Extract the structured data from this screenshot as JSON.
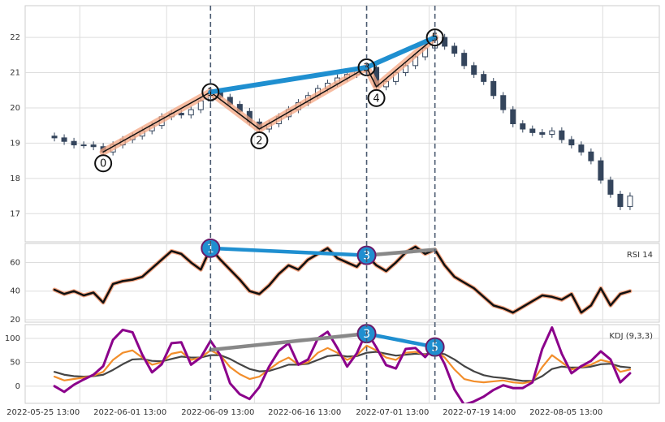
{
  "chart_data": [
    {
      "type": "candlestick",
      "xlim": [
        -3,
        62
      ],
      "ylim": [
        16.2,
        22.9
      ],
      "yticks": [
        17,
        18,
        19,
        20,
        21,
        22
      ],
      "up_color": "#ffffff",
      "down_color": "#34455c",
      "grid": true,
      "open": [
        19.2,
        19.15,
        19.05,
        18.95,
        18.95,
        18.9,
        18.75,
        18.95,
        19.1,
        19.2,
        19.35,
        19.5,
        19.75,
        19.85,
        19.8,
        19.95,
        20.2,
        20.45,
        20.3,
        20.1,
        19.9,
        19.6,
        19.4,
        19.55,
        19.75,
        19.95,
        20.15,
        20.35,
        20.55,
        20.7,
        20.85,
        20.95,
        21.05,
        21.15,
        20.6,
        20.75,
        21.0,
        21.2,
        21.45,
        21.7,
        22.0,
        21.75,
        21.55,
        21.2,
        20.95,
        20.75,
        20.35,
        19.95,
        19.55,
        19.4,
        19.3,
        19.25,
        19.35,
        19.1,
        18.95,
        18.75,
        18.5,
        17.95,
        17.55,
        17.2
      ],
      "high": [
        19.3,
        19.25,
        19.15,
        19.05,
        19.05,
        19.0,
        19.05,
        19.2,
        19.3,
        19.45,
        19.6,
        19.85,
        19.95,
        19.95,
        20.05,
        20.3,
        20.55,
        20.55,
        20.4,
        20.2,
        20.0,
        19.7,
        19.65,
        19.85,
        20.05,
        20.25,
        20.45,
        20.65,
        20.8,
        20.95,
        21.05,
        21.15,
        21.25,
        21.25,
        20.85,
        21.1,
        21.3,
        21.55,
        21.8,
        22.1,
        22.1,
        21.85,
        21.65,
        21.3,
        21.05,
        20.85,
        20.45,
        20.05,
        19.65,
        19.5,
        19.4,
        19.45,
        19.45,
        19.2,
        19.05,
        18.85,
        18.6,
        18.05,
        17.65,
        17.6
      ],
      "low": [
        19.05,
        18.95,
        18.85,
        18.85,
        18.8,
        18.65,
        18.65,
        18.85,
        19.0,
        19.1,
        19.25,
        19.4,
        19.65,
        19.7,
        19.7,
        19.85,
        20.1,
        20.2,
        20.0,
        19.8,
        19.5,
        19.3,
        19.3,
        19.45,
        19.65,
        19.85,
        20.05,
        20.25,
        20.45,
        20.6,
        20.75,
        20.85,
        20.95,
        20.5,
        20.5,
        20.65,
        20.9,
        21.1,
        21.35,
        21.6,
        21.65,
        21.45,
        21.1,
        20.85,
        20.65,
        20.25,
        19.85,
        19.45,
        19.3,
        19.2,
        19.15,
        19.15,
        19.0,
        18.85,
        18.65,
        18.4,
        17.85,
        17.45,
        17.1,
        17.1
      ],
      "close": [
        19.15,
        19.05,
        18.95,
        18.95,
        18.9,
        18.75,
        18.95,
        19.1,
        19.2,
        19.35,
        19.5,
        19.75,
        19.85,
        19.8,
        19.95,
        20.2,
        20.45,
        20.3,
        20.1,
        19.9,
        19.6,
        19.4,
        19.55,
        19.75,
        19.95,
        20.15,
        20.35,
        20.55,
        20.7,
        20.85,
        20.95,
        21.05,
        21.15,
        20.6,
        20.75,
        21.0,
        21.2,
        21.45,
        21.7,
        22.0,
        21.75,
        21.55,
        21.2,
        20.95,
        20.75,
        20.35,
        19.95,
        19.55,
        19.4,
        19.3,
        19.25,
        19.35,
        19.1,
        18.95,
        18.75,
        18.5,
        17.95,
        17.55,
        17.2,
        17.5
      ],
      "zigzag": {
        "x": [
          5,
          16,
          21,
          32,
          33,
          39
        ],
        "y": [
          18.75,
          20.45,
          19.4,
          21.15,
          20.6,
          22.0
        ],
        "labels": [
          "0",
          "1",
          "2",
          "3",
          "4",
          "5"
        ]
      },
      "trend": {
        "x": [
          16,
          32,
          39
        ],
        "y": [
          20.45,
          21.15,
          22.0
        ],
        "color": "#1f8fd0"
      },
      "vlines": [
        16,
        32,
        39
      ]
    },
    {
      "type": "line",
      "label": "RSI 14",
      "xlim": [
        -3,
        62
      ],
      "ylim": [
        18.3,
        73.3
      ],
      "yticks": [
        20,
        40,
        60
      ],
      "grid": true,
      "series": [
        {
          "color": "#111111",
          "values": [
            41,
            38,
            40,
            37,
            39,
            32,
            45,
            47,
            48,
            50,
            56,
            62,
            68,
            66,
            60,
            55,
            70,
            62,
            55,
            48,
            40,
            38,
            44,
            52,
            58,
            55,
            62,
            66,
            70,
            63,
            60,
            57,
            65,
            58,
            54,
            60,
            67,
            71,
            66,
            69,
            58,
            50,
            46,
            42,
            36,
            30,
            28,
            25,
            29,
            33,
            37,
            36,
            34,
            38,
            25,
            30,
            42,
            30,
            38,
            40
          ]
        }
      ],
      "divergence": [
        {
          "x": [
            16,
            32
          ],
          "y": [
            70,
            65
          ],
          "color": "#1f8fd0"
        },
        {
          "x": [
            32,
            39
          ],
          "y": [
            65,
            69
          ],
          "color": "#888888"
        }
      ],
      "points": {
        "x": [
          16,
          32
        ],
        "y": [
          70,
          65
        ],
        "labels": [
          "1",
          "3"
        ]
      }
    },
    {
      "type": "line",
      "label": "KDJ (9,3,3)",
      "xlim": [
        -3,
        62
      ],
      "ylim": [
        -36,
        129
      ],
      "yticks": [
        0,
        50,
        100
      ],
      "grid": true,
      "xticks": [
        {
          "value": 2.6,
          "label": "2022-05-25 13:00"
        },
        {
          "value": 11.5,
          "label": "2022-06-01 13:00"
        },
        {
          "value": 20.5,
          "label": "2022-06-09 13:00"
        },
        {
          "value": 29.4,
          "label": "2022-06-16 13:00"
        },
        {
          "value": 38.4,
          "label": "2022-07-01 13:00"
        },
        {
          "value": 47.3,
          "label": "2022-07-19 14:00"
        },
        {
          "value": 56.2,
          "label": "2022-08-05 13:00"
        }
      ],
      "series": [
        {
          "color": "#444444",
          "values": [
            30,
            24,
            21,
            20,
            21,
            24,
            34,
            46,
            56,
            57,
            53,
            52,
            57,
            62,
            60,
            60,
            65,
            65,
            57,
            46,
            36,
            31,
            32,
            38,
            45,
            45,
            47,
            55,
            63,
            65,
            62,
            63,
            70,
            72,
            68,
            64,
            66,
            68,
            67,
            70,
            67,
            56,
            42,
            31,
            23,
            19,
            17,
            14,
            11,
            11,
            21,
            36,
            41,
            39,
            39,
            41,
            46,
            47,
            41,
            39
          ]
        },
        {
          "color": "#f28e2b",
          "values": [
            20,
            12,
            15,
            18,
            22,
            30,
            55,
            70,
            75,
            60,
            45,
            50,
            68,
            72,
            55,
            60,
            75,
            65,
            40,
            25,
            15,
            20,
            35,
            50,
            60,
            45,
            50,
            70,
            80,
            70,
            55,
            65,
            85,
            75,
            60,
            55,
            70,
            72,
            65,
            75,
            60,
            35,
            15,
            10,
            8,
            10,
            12,
            8,
            6,
            10,
            40,
            65,
            50,
            35,
            40,
            45,
            55,
            50,
            30,
            35
          ]
        },
        {
          "color": "#8b008b",
          "values": [
            0,
            -12,
            3,
            14,
            24,
            42,
            97,
            118,
            113,
            66,
            29,
            46,
            90,
            92,
            45,
            60,
            95,
            65,
            6,
            -17,
            -27,
            -2,
            41,
            74,
            90,
            45,
            56,
            100,
            114,
            80,
            41,
            69,
            115,
            81,
            44,
            37,
            78,
            80,
            61,
            85,
            46,
            -7,
            -39,
            -32,
            -22,
            -8,
            2,
            -4,
            -4,
            8,
            78,
            123,
            68,
            27,
            42,
            53,
            73,
            56,
            8,
            27
          ]
        }
      ],
      "divergence": [
        {
          "x": [
            16,
            32
          ],
          "y": [
            76,
            110
          ],
          "color": "#888888"
        },
        {
          "x": [
            32,
            39
          ],
          "y": [
            110,
            82
          ],
          "color": "#1f8fd0"
        }
      ],
      "points": {
        "x": [
          32,
          39
        ],
        "y": [
          110,
          82
        ],
        "labels": [
          "3",
          "5"
        ]
      }
    }
  ]
}
